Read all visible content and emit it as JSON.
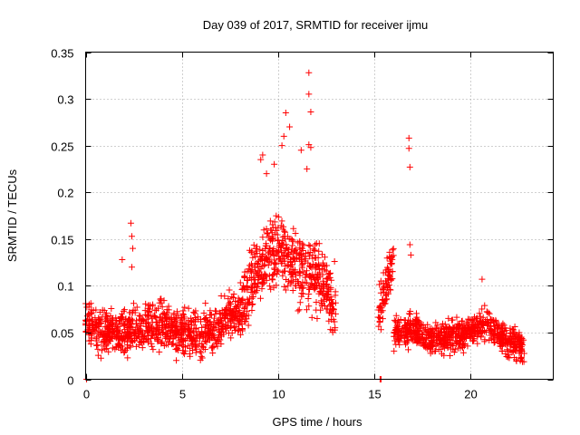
{
  "chart_data": {
    "type": "scatter",
    "title": "Day 039 of 2017, SRMTID for receiver ijmu",
    "xlabel": "GPS time / hours",
    "ylabel": "SRMTID / TECUs",
    "xlim": [
      0,
      24.3
    ],
    "ylim": [
      0,
      0.35
    ],
    "xticks": [
      0,
      5,
      10,
      15,
      20
    ],
    "xtick_labels": [
      "0",
      "5",
      "10",
      "15",
      "20"
    ],
    "yticks": [
      0,
      0.05,
      0.1,
      0.15,
      0.2,
      0.25,
      0.3,
      0.35
    ],
    "ytick_labels": [
      "0",
      "0.05",
      "0.1",
      "0.15",
      "0.2",
      "0.25",
      "0.3",
      "0.35"
    ],
    "grid": true,
    "marker": "+",
    "color": "#ff0000",
    "segments": [
      {
        "x_start": 0.0,
        "x_end": 8.0,
        "base": [
          0.06,
          0.05,
          0.05,
          0.055,
          0.06,
          0.05,
          0.045,
          0.06,
          0.075
        ],
        "spread": 0.025
      },
      {
        "x_start": 8.0,
        "x_end": 13.0,
        "base": [
          0.075,
          0.12,
          0.14,
          0.12,
          0.11,
          0.08
        ],
        "spread": 0.04
      },
      {
        "x_start": 15.2,
        "x_end": 16.0,
        "base": [
          0.07,
          0.1,
          0.13
        ],
        "spread": 0.025
      },
      {
        "x_start": 16.0,
        "x_end": 22.8,
        "base": [
          0.05,
          0.055,
          0.045,
          0.045,
          0.05,
          0.06,
          0.04,
          0.035
        ],
        "spread": 0.017
      }
    ],
    "highlight_points": [
      {
        "x": 0.05,
        "y": 0.0
      },
      {
        "x": 15.3,
        "y": 0.0
      },
      {
        "x": 15.35,
        "y": 0.0
      },
      {
        "x": 2.35,
        "y": 0.167
      },
      {
        "x": 2.4,
        "y": 0.153
      },
      {
        "x": 2.45,
        "y": 0.14
      },
      {
        "x": 2.4,
        "y": 0.12
      },
      {
        "x": 1.9,
        "y": 0.128
      },
      {
        "x": 9.1,
        "y": 0.235
      },
      {
        "x": 9.2,
        "y": 0.24
      },
      {
        "x": 9.4,
        "y": 0.22
      },
      {
        "x": 9.8,
        "y": 0.23
      },
      {
        "x": 10.2,
        "y": 0.25
      },
      {
        "x": 10.3,
        "y": 0.26
      },
      {
        "x": 10.4,
        "y": 0.285
      },
      {
        "x": 10.6,
        "y": 0.27
      },
      {
        "x": 11.2,
        "y": 0.245
      },
      {
        "x": 11.6,
        "y": 0.328
      },
      {
        "x": 11.6,
        "y": 0.305
      },
      {
        "x": 11.7,
        "y": 0.286
      },
      {
        "x": 11.6,
        "y": 0.251
      },
      {
        "x": 11.7,
        "y": 0.248
      },
      {
        "x": 11.5,
        "y": 0.225
      },
      {
        "x": 16.8,
        "y": 0.258
      },
      {
        "x": 16.8,
        "y": 0.247
      },
      {
        "x": 16.85,
        "y": 0.227
      },
      {
        "x": 16.85,
        "y": 0.144
      },
      {
        "x": 16.9,
        "y": 0.133
      },
      {
        "x": 20.6,
        "y": 0.107
      }
    ]
  }
}
